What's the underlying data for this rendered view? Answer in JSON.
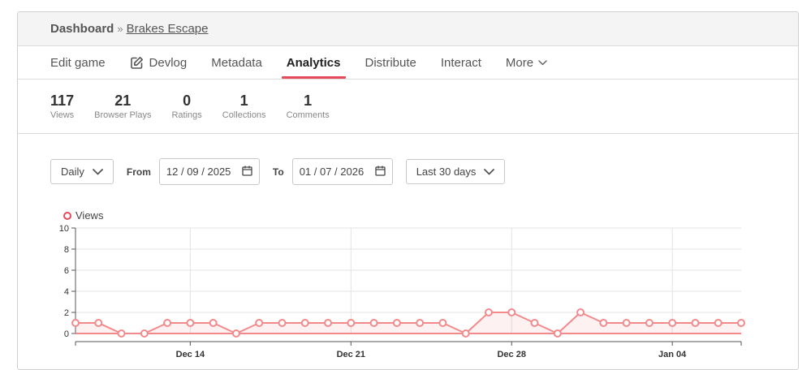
{
  "breadcrumb": {
    "root": "Dashboard",
    "separator": "»",
    "current": "Brakes Escape"
  },
  "tabs": [
    {
      "label": "Edit game"
    },
    {
      "label": "Devlog",
      "icon": "edit-icon"
    },
    {
      "label": "Metadata"
    },
    {
      "label": "Analytics",
      "active": true
    },
    {
      "label": "Distribute"
    },
    {
      "label": "Interact"
    },
    {
      "label": "More",
      "icon": "chevron-down-icon"
    }
  ],
  "stats": [
    {
      "value": "117",
      "label": "Views"
    },
    {
      "value": "21",
      "label": "Browser Plays"
    },
    {
      "value": "0",
      "label": "Ratings"
    },
    {
      "value": "1",
      "label": "Collections"
    },
    {
      "value": "1",
      "label": "Comments"
    }
  ],
  "controls": {
    "interval": "Daily",
    "from_label": "From",
    "from_date": "12 / 09 / 2025",
    "to_label": "To",
    "to_date": "01 / 07 / 2026",
    "range": "Last 30 days"
  },
  "colors": {
    "accent": "#e8495b",
    "series": "#f28a8c"
  },
  "chart_data": {
    "type": "line",
    "legend": "Views",
    "legend_position": "top-left",
    "x": [
      "2025-12-09",
      "2025-12-10",
      "2025-12-11",
      "2025-12-12",
      "2025-12-13",
      "2025-12-14",
      "2025-12-15",
      "2025-12-16",
      "2025-12-17",
      "2025-12-18",
      "2025-12-19",
      "2025-12-20",
      "2025-12-21",
      "2025-12-22",
      "2025-12-23",
      "2025-12-24",
      "2025-12-25",
      "2025-12-26",
      "2025-12-27",
      "2025-12-28",
      "2025-12-29",
      "2025-12-30",
      "2025-12-31",
      "2026-01-01",
      "2026-01-02",
      "2026-01-03",
      "2026-01-04",
      "2026-01-05",
      "2026-01-06",
      "2026-01-07"
    ],
    "series": [
      {
        "name": "Views",
        "values": [
          1,
          1,
          0,
          0,
          1,
          1,
          1,
          0,
          1,
          1,
          1,
          1,
          1,
          1,
          1,
          1,
          1,
          0,
          2,
          2,
          1,
          0,
          2,
          1,
          1,
          1,
          1,
          1,
          1,
          1
        ]
      }
    ],
    "baseline": 0,
    "ylim": [
      0,
      10
    ],
    "yticks": [
      "0",
      "2",
      "4",
      "6",
      "8",
      "10"
    ],
    "xticks": [
      {
        "label": "Dec 14",
        "date": "2025-12-14"
      },
      {
        "label": "Dec 21",
        "date": "2025-12-21"
      },
      {
        "label": "Dec 28",
        "date": "2025-12-28"
      },
      {
        "label": "Jan 04",
        "date": "2026-01-04"
      }
    ],
    "grid": true
  }
}
